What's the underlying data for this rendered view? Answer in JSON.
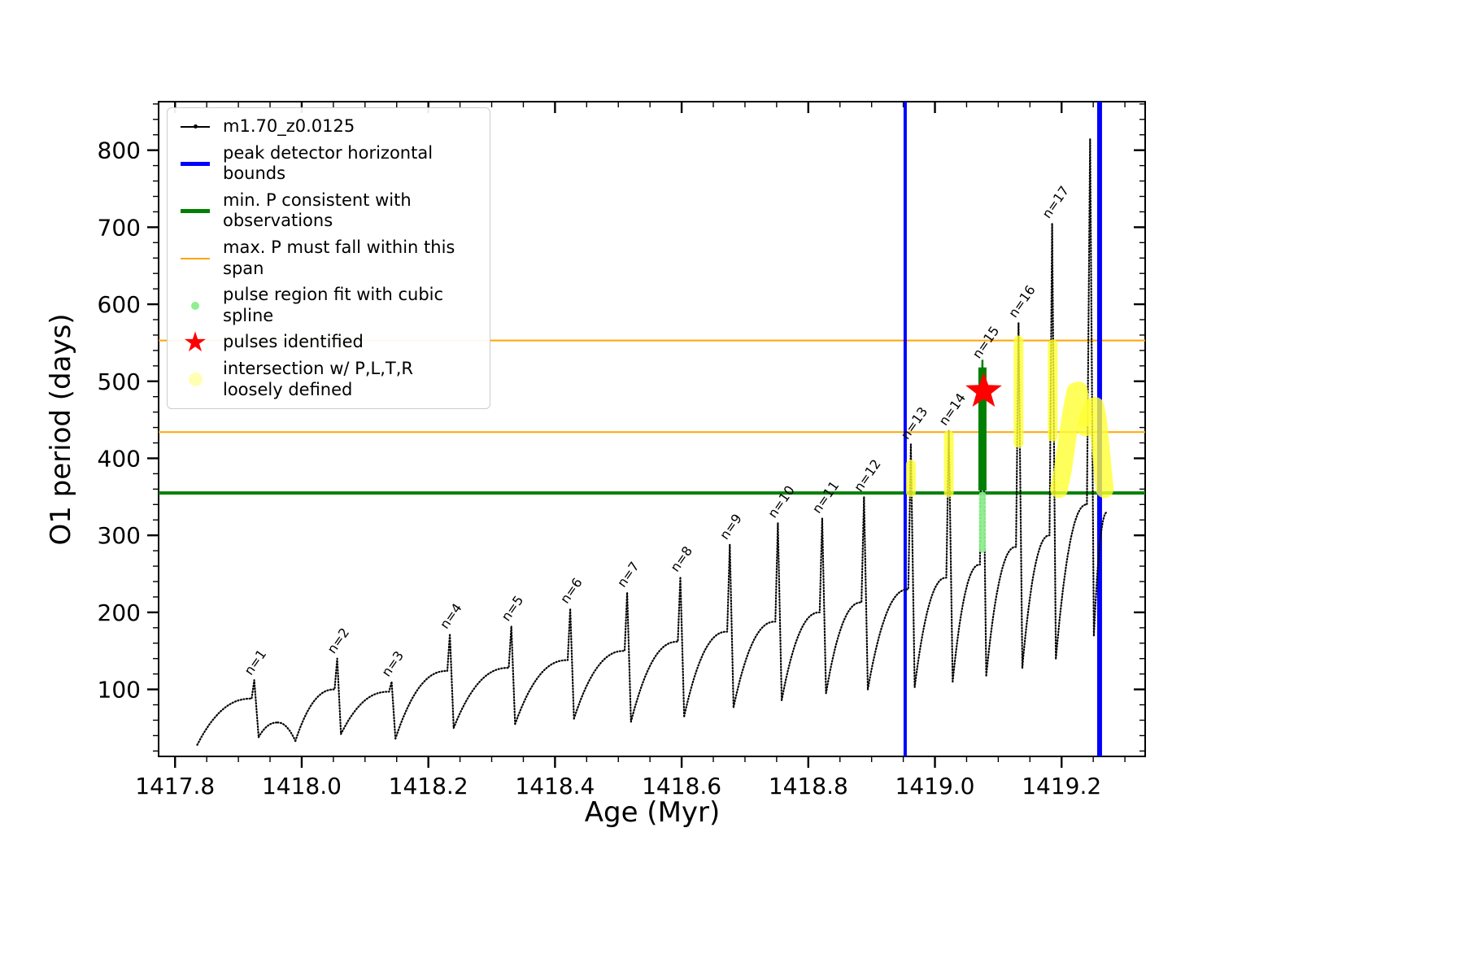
{
  "axes": {
    "xlabel": "Age (Myr)",
    "ylabel": "O1 period (days)"
  },
  "legend": {
    "items": [
      {
        "label": "m1.70_z0.0125",
        "icon": "series-line"
      },
      {
        "label": "peak detector horizontal bounds",
        "icon": "blue-line"
      },
      {
        "label": "min. P consistent with observations",
        "icon": "green-line"
      },
      {
        "label": "max. P must fall within this span",
        "icon": "orange-line"
      },
      {
        "label": "pulse region fit with cubic spline",
        "icon": "lightgreen-dot"
      },
      {
        "label": "pulses identified",
        "icon": "red-star",
        "glyph": "★"
      },
      {
        "label": "intersection w/ P,L,T,R\nloosely defined",
        "icon": "yellow-dot"
      }
    ]
  },
  "chart_data": {
    "type": "line",
    "title": "",
    "xlabel": "Age (Myr)",
    "ylabel": "O1 period (days)",
    "xlim": [
      1417.774,
      1419.332
    ],
    "ylim": [
      13,
      863
    ],
    "grid": false,
    "legend_position": "upper left",
    "xticks": {
      "values": [
        1417.8,
        1418.0,
        1418.2,
        1418.4,
        1418.6,
        1418.8,
        1419.0,
        1419.2
      ],
      "labels": [
        "1417.8",
        "1418.0",
        "1418.2",
        "1418.4",
        "1418.6",
        "1418.8",
        "1419.0",
        "1419.2"
      ],
      "minor_step": 0.05
    },
    "yticks": {
      "values": [
        100,
        200,
        300,
        400,
        500,
        600,
        700,
        800
      ],
      "labels": [
        "100",
        "200",
        "300",
        "400",
        "500",
        "600",
        "700",
        "800"
      ],
      "minor_step": 20
    },
    "series_name": "m1.70_z0.0125",
    "colors": {
      "curve": "#000000",
      "bounds": "#0000ff",
      "min_p": "#008000",
      "max_p": "#ffa500",
      "spline": "#90ee90",
      "pulse": "#ff0000",
      "intersection": "#ffff33",
      "intersection_legend": "#ffffb3"
    },
    "cycles": [
      {
        "x0": 1417.835,
        "y0": 28,
        "x1": 1417.921,
        "y1": 88,
        "xp": 1417.925,
        "yp": 112,
        "label": "n=1"
      },
      {
        "x0": 1417.932,
        "y0": 38,
        "x1": 1417.962,
        "y1": 57,
        "xp": null,
        "yp": null,
        "label": null
      },
      {
        "x0": 1417.962,
        "y0": 57,
        "x1": 1417.99,
        "y1": 33,
        "xp": null,
        "yp": null,
        "label": null
      },
      {
        "x0": 1417.99,
        "y0": 33,
        "x1": 1418.052,
        "y1": 100,
        "xp": 1418.056,
        "yp": 140,
        "label": "n=2"
      },
      {
        "x0": 1418.062,
        "y0": 42,
        "x1": 1418.138,
        "y1": 97,
        "xp": 1418.142,
        "yp": 110,
        "label": "n=3"
      },
      {
        "x0": 1418.148,
        "y0": 36,
        "x1": 1418.23,
        "y1": 124,
        "xp": 1418.234,
        "yp": 172,
        "label": "n=4"
      },
      {
        "x0": 1418.24,
        "y0": 50,
        "x1": 1418.327,
        "y1": 128,
        "xp": 1418.331,
        "yp": 182,
        "label": "n=5"
      },
      {
        "x0": 1418.337,
        "y0": 55,
        "x1": 1418.42,
        "y1": 138,
        "xp": 1418.424,
        "yp": 205,
        "label": "n=6"
      },
      {
        "x0": 1418.43,
        "y0": 62,
        "x1": 1418.51,
        "y1": 150,
        "xp": 1418.514,
        "yp": 226,
        "label": "n=7"
      },
      {
        "x0": 1418.52,
        "y0": 58,
        "x1": 1418.594,
        "y1": 162,
        "xp": 1418.598,
        "yp": 246,
        "label": "n=8"
      },
      {
        "x0": 1418.604,
        "y0": 65,
        "x1": 1418.672,
        "y1": 175,
        "xp": 1418.676,
        "yp": 288,
        "label": "n=9"
      },
      {
        "x0": 1418.682,
        "y0": 77,
        "x1": 1418.748,
        "y1": 188,
        "xp": 1418.752,
        "yp": 316,
        "label": "n=10"
      },
      {
        "x0": 1418.758,
        "y0": 86,
        "x1": 1418.818,
        "y1": 200,
        "xp": 1418.822,
        "yp": 322,
        "label": "n=11"
      },
      {
        "x0": 1418.828,
        "y0": 95,
        "x1": 1418.884,
        "y1": 213,
        "xp": 1418.888,
        "yp": 350,
        "label": "n=12"
      },
      {
        "x0": 1418.894,
        "y0": 100,
        "x1": 1418.958,
        "y1": 230,
        "xp": 1418.962,
        "yp": 418,
        "label": "n=13"
      },
      {
        "x0": 1418.968,
        "y0": 103,
        "x1": 1419.018,
        "y1": 245,
        "xp": 1419.022,
        "yp": 436,
        "label": "n=14"
      },
      {
        "x0": 1419.028,
        "y0": 110,
        "x1": 1419.071,
        "y1": 262,
        "xp": 1419.075,
        "yp": 523,
        "label": "n=15"
      },
      {
        "x0": 1419.081,
        "y0": 118,
        "x1": 1419.128,
        "y1": 285,
        "xp": 1419.132,
        "yp": 576,
        "label": "n=16"
      },
      {
        "x0": 1419.138,
        "y0": 128,
        "x1": 1419.181,
        "y1": 300,
        "xp": 1419.185,
        "yp": 705,
        "label": "n=17"
      },
      {
        "x0": 1419.191,
        "y0": 140,
        "x1": 1419.24,
        "y1": 340,
        "xp": 1419.245,
        "yp": 815,
        "label": null
      },
      {
        "x0": 1419.251,
        "y0": 170,
        "x1": 1419.272,
        "y1": 330,
        "xp": null,
        "yp": null,
        "label": null
      }
    ],
    "pulse_peaks": [
      {
        "n": 1,
        "age": 1417.925,
        "period": 112
      },
      {
        "n": 2,
        "age": 1418.056,
        "period": 140
      },
      {
        "n": 3,
        "age": 1418.142,
        "period": 110
      },
      {
        "n": 4,
        "age": 1418.234,
        "period": 172
      },
      {
        "n": 5,
        "age": 1418.331,
        "period": 182
      },
      {
        "n": 6,
        "age": 1418.424,
        "period": 205
      },
      {
        "n": 7,
        "age": 1418.514,
        "period": 226
      },
      {
        "n": 8,
        "age": 1418.598,
        "period": 246
      },
      {
        "n": 9,
        "age": 1418.676,
        "period": 288
      },
      {
        "n": 10,
        "age": 1418.752,
        "period": 316
      },
      {
        "n": 11,
        "age": 1418.822,
        "period": 322
      },
      {
        "n": 12,
        "age": 1418.888,
        "period": 350
      },
      {
        "n": 13,
        "age": 1418.962,
        "period": 418
      },
      {
        "n": 14,
        "age": 1419.022,
        "period": 436
      },
      {
        "n": 15,
        "age": 1419.075,
        "period": 523
      },
      {
        "n": 16,
        "age": 1419.132,
        "period": 576
      },
      {
        "n": 17,
        "age": 1419.185,
        "period": 705
      },
      {
        "n": null,
        "age": 1419.245,
        "period": 815
      }
    ],
    "vlines": {
      "x": [
        1418.953,
        1419.26
      ],
      "widths": [
        4,
        6
      ]
    },
    "hlines": [
      {
        "y": 553,
        "color_key": "max_p",
        "width": 2
      },
      {
        "y": 434,
        "color_key": "max_p",
        "width": 2
      },
      {
        "y": 355,
        "color_key": "min_p",
        "width": 4
      }
    ],
    "spline_dots": {
      "x": 1419.075,
      "y_from": 282,
      "y_to": 356,
      "step": 5,
      "radius": 4.5
    },
    "pulse_column": {
      "x": 1419.075,
      "y_from": 358,
      "y_to": 518,
      "tip_to": 528
    },
    "star": {
      "x": 1419.077,
      "y": 487
    },
    "yellow_paths": [
      {
        "width": 12,
        "pts": [
          [
            1418.962,
            356
          ],
          [
            1418.962,
            392
          ]
        ]
      },
      {
        "width": 12,
        "pts": [
          [
            1419.022,
            356
          ],
          [
            1419.022,
            430
          ]
        ]
      },
      {
        "width": 12,
        "pts": [
          [
            1419.132,
            420
          ],
          [
            1419.132,
            553
          ]
        ]
      },
      {
        "width": 12,
        "pts": [
          [
            1419.186,
            428
          ],
          [
            1419.186,
            548
          ]
        ]
      },
      {
        "width": 22,
        "pts": [
          [
            1419.196,
            360
          ],
          [
            1419.202,
            385
          ],
          [
            1419.209,
            425
          ],
          [
            1419.216,
            462
          ],
          [
            1419.222,
            487
          ],
          [
            1419.227,
            488
          ],
          [
            1419.231,
            470
          ],
          [
            1419.234,
            452
          ]
        ]
      },
      {
        "width": 22,
        "pts": [
          [
            1419.238,
            440
          ],
          [
            1419.243,
            452
          ],
          [
            1419.248,
            466
          ],
          [
            1419.253,
            468
          ],
          [
            1419.257,
            452
          ],
          [
            1419.261,
            420
          ],
          [
            1419.265,
            385
          ],
          [
            1419.268,
            360
          ]
        ]
      }
    ]
  }
}
